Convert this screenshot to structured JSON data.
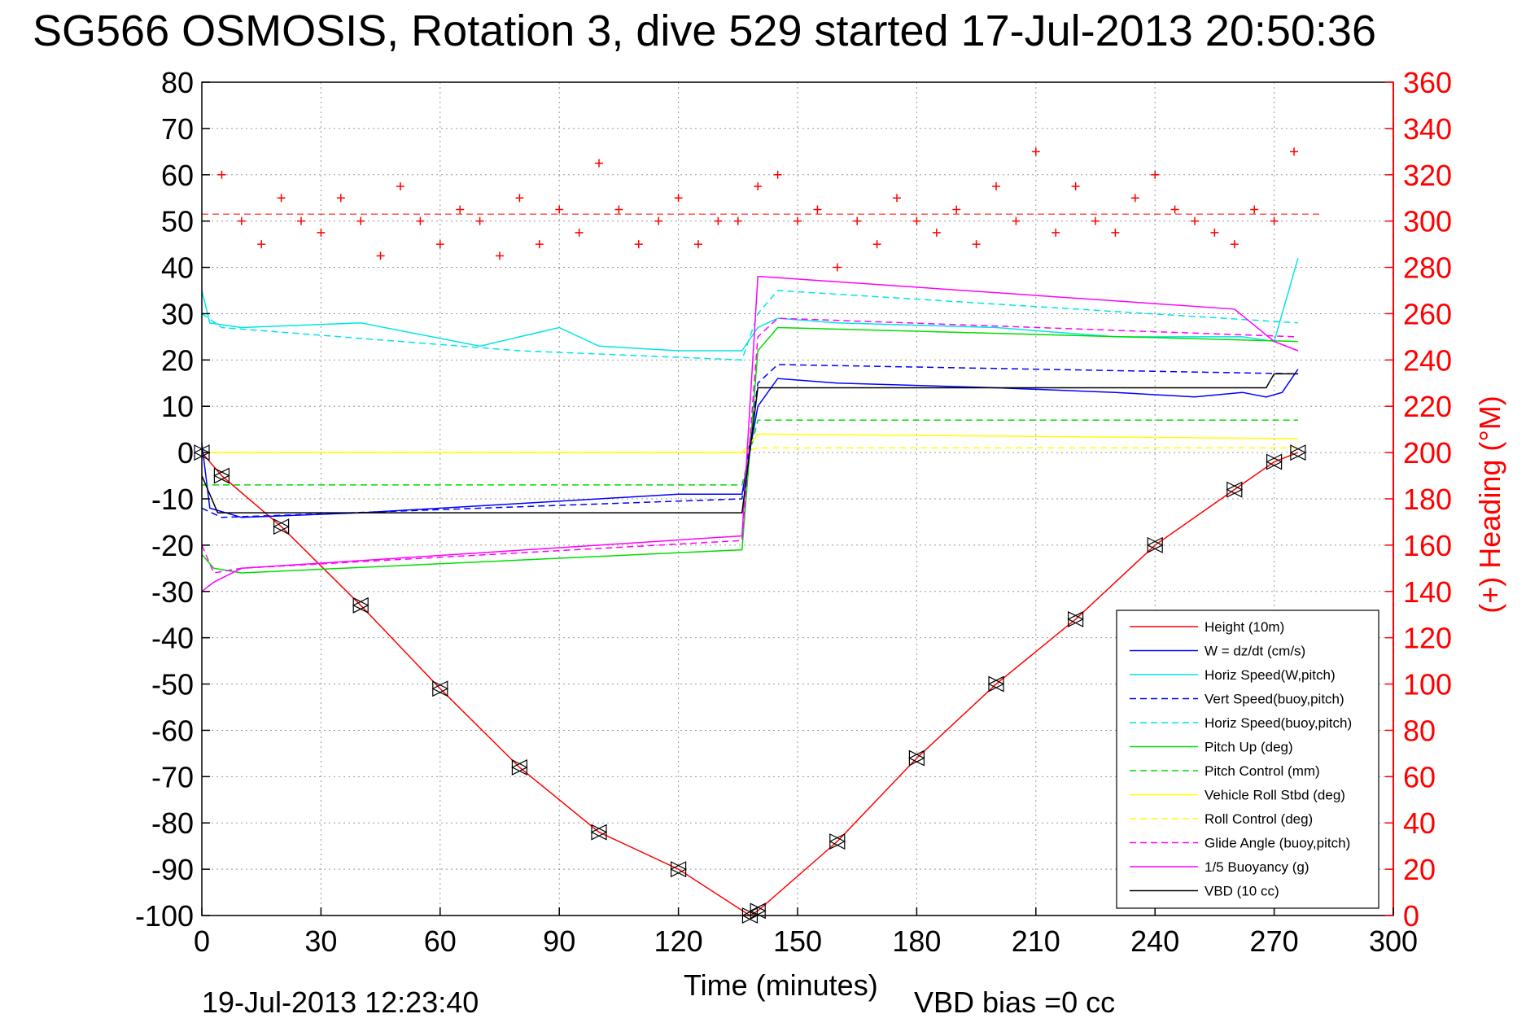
{
  "chart_data": {
    "type": "line",
    "title": "SG566 OSMOSIS, Rotation 3, dive 529 started 17-Jul-2013 20:50:36",
    "xlabel": "Time (minutes)",
    "ylabel_right": "(+) Heading (°M)",
    "footer_date": "19-Jul-2013 12:23:40",
    "footer_bias": "VBD bias =0 cc",
    "xlim": [
      0,
      300
    ],
    "ylim": [
      -100,
      80
    ],
    "ylim_right": [
      0,
      360
    ],
    "x_ticks": [
      "0",
      "30",
      "60",
      "90",
      "120",
      "150",
      "180",
      "210",
      "240",
      "270",
      "300"
    ],
    "y_ticks": [
      "80",
      "70",
      "60",
      "50",
      "40",
      "30",
      "20",
      "10",
      "0",
      "-10",
      "-20",
      "-30",
      "-40",
      "-50",
      "-60",
      "-70",
      "-80",
      "-90",
      "-100"
    ],
    "y_ticks_right": [
      "360",
      "340",
      "320",
      "300",
      "280",
      "260",
      "240",
      "220",
      "200",
      "180",
      "160",
      "140",
      "120",
      "100",
      "80",
      "60",
      "40",
      "20",
      "0"
    ],
    "grid": true,
    "legend_position": "bottom-right",
    "series": [
      {
        "name": "Height (10m)",
        "color": "#ff0000",
        "style": "solid",
        "x": [
          0,
          5,
          20,
          40,
          60,
          80,
          100,
          120,
          138,
          140,
          160,
          180,
          200,
          220,
          240,
          260,
          270,
          276
        ],
        "y": [
          0,
          -5,
          -16,
          -33,
          -51,
          -68,
          -82,
          -90,
          -100,
          -99,
          -84,
          -66,
          -50,
          -36,
          -20,
          -8,
          -2,
          0
        ]
      },
      {
        "name": "W = dz/dt (cm/s)",
        "color": "#0000ff",
        "style": "solid",
        "x": [
          0,
          2,
          10,
          40,
          80,
          120,
          136,
          140,
          145,
          160,
          200,
          230,
          250,
          262,
          268,
          272,
          276
        ],
        "y": [
          2,
          -12,
          -14,
          -13,
          -11,
          -9,
          -9,
          10,
          16,
          15,
          14,
          13,
          12,
          13,
          12,
          13,
          18
        ]
      },
      {
        "name": "Horiz Speed(W,pitch)",
        "color": "#00e5e5",
        "style": "solid",
        "x": [
          0,
          2,
          10,
          40,
          70,
          90,
          100,
          120,
          136,
          140,
          145,
          160,
          200,
          230,
          250,
          262,
          270,
          276
        ],
        "y": [
          35,
          28,
          27,
          28,
          23,
          27,
          23,
          22,
          22,
          27,
          29,
          28,
          27,
          25,
          25,
          25,
          24,
          42
        ]
      },
      {
        "name": "Vert Speed(buoy,pitch)",
        "color": "#0000ff",
        "style": "dashed",
        "x": [
          0,
          5,
          136,
          140,
          145,
          276
        ],
        "y": [
          -12,
          -14,
          -10,
          15,
          19,
          17
        ]
      },
      {
        "name": "Horiz Speed(buoy,pitch)",
        "color": "#00e5e5",
        "style": "dashed",
        "x": [
          0,
          5,
          80,
          136,
          140,
          145,
          276
        ],
        "y": [
          30,
          27,
          22,
          20,
          30,
          35,
          28
        ]
      },
      {
        "name": "Pitch Up (deg)",
        "color": "#00dd00",
        "style": "solid",
        "x": [
          0,
          3,
          10,
          136,
          140,
          145,
          276
        ],
        "y": [
          -22,
          -25,
          -26,
          -21,
          22,
          27,
          24
        ]
      },
      {
        "name": "Pitch Control (mm)",
        "color": "#00dd00",
        "style": "dashed",
        "x": [
          0,
          136,
          140,
          276
        ],
        "y": [
          -7,
          -7,
          7,
          7
        ]
      },
      {
        "name": "Vehicle Roll Stbd (deg)",
        "color": "#ffff00",
        "style": "solid",
        "x": [
          0,
          136,
          140,
          276
        ],
        "y": [
          0,
          0,
          4,
          3
        ]
      },
      {
        "name": "Roll Control (deg)",
        "color": "#ffff00",
        "style": "dashed",
        "x": [
          0,
          136,
          140,
          276
        ],
        "y": [
          0,
          0,
          1,
          1
        ]
      },
      {
        "name": "Glide Angle (buoy,pitch)",
        "color": "#ff00ff",
        "style": "dashed",
        "x": [
          0,
          3,
          10,
          136,
          140,
          145,
          276
        ],
        "y": [
          -20,
          -26,
          -25,
          -19,
          25,
          29,
          25
        ]
      },
      {
        "name": "1/5 Buoyancy (g)",
        "color": "#ff00ff",
        "style": "solid",
        "x": [
          0,
          3,
          10,
          136,
          140,
          141,
          260,
          270,
          276
        ],
        "y": [
          -30,
          -28,
          -25,
          -18,
          38,
          38,
          31,
          24,
          22
        ]
      },
      {
        "name": "VBD (10 cc)",
        "color": "#000000",
        "style": "solid",
        "x": [
          0,
          4,
          10,
          136,
          140,
          145,
          260,
          268,
          270,
          276
        ],
        "y": [
          -5,
          -13,
          -13,
          -13,
          14,
          14,
          14,
          14,
          17,
          17
        ]
      }
    ],
    "heading": {
      "color": "#ff0000",
      "marker": "+",
      "reference_line": 303,
      "x": [
        5,
        10,
        15,
        20,
        25,
        30,
        35,
        40,
        45,
        50,
        55,
        60,
        65,
        70,
        75,
        80,
        85,
        90,
        95,
        100,
        105,
        110,
        115,
        120,
        125,
        130,
        135,
        140,
        145,
        150,
        155,
        160,
        165,
        170,
        175,
        180,
        185,
        190,
        195,
        200,
        205,
        210,
        215,
        220,
        225,
        230,
        235,
        240,
        245,
        250,
        255,
        260,
        265,
        270,
        275
      ],
      "y": [
        320,
        300,
        290,
        310,
        300,
        295,
        310,
        300,
        285,
        315,
        300,
        290,
        305,
        300,
        285,
        310,
        290,
        305,
        295,
        325,
        305,
        290,
        300,
        310,
        290,
        300,
        300,
        315,
        320,
        300,
        305,
        280,
        300,
        290,
        310,
        300,
        295,
        305,
        290,
        315,
        300,
        330,
        295,
        315,
        300,
        295,
        310,
        320,
        305,
        300,
        295,
        290,
        305,
        300,
        330
      ]
    }
  }
}
